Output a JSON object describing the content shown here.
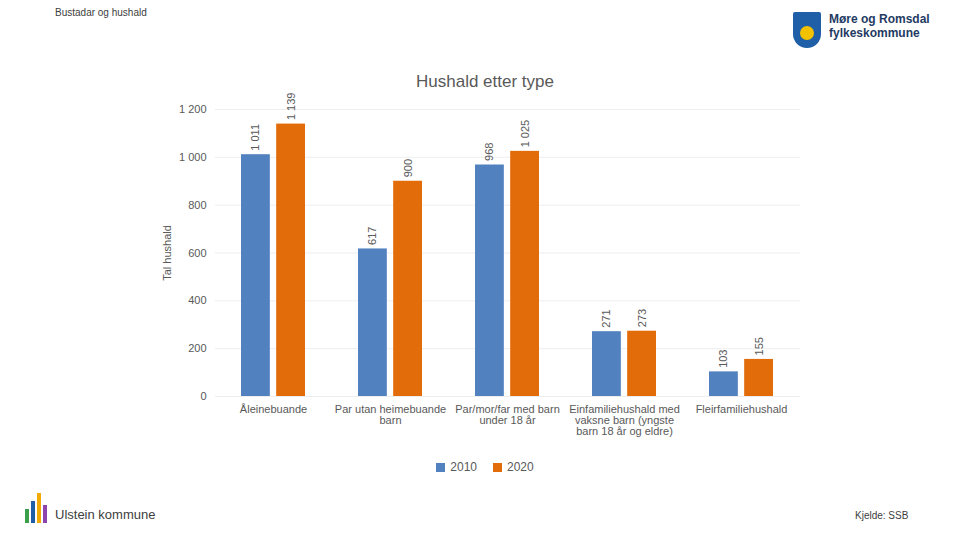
{
  "page": {
    "header": "Bustadar og hushald",
    "organisation": [
      "Møre og Romsdal",
      "fylkeskommune"
    ],
    "footer": "Ulstein kommune",
    "source": "Kjelde: SSB"
  },
  "chart_data": {
    "type": "bar",
    "title": "Hushald etter type",
    "y_label": "Tal hushald",
    "categories": [
      "Åleinebuande",
      "Par utan heimebuande barn",
      "Par/mor/far med barn under 18 år",
      "Einfamiliehushald med vaksne barn (yngste barn 18 år og eldre)",
      "Fleirfamiliehushald"
    ],
    "series": [
      {
        "name": "2010",
        "color": "#5281c0",
        "values": [
          1011,
          617,
          968,
          271,
          103
        ],
        "value_labels": [
          "1 011",
          "617",
          "968",
          "271",
          "103"
        ]
      },
      {
        "name": "2020",
        "color": "#e36c0a",
        "values": [
          1139,
          900,
          1025,
          273,
          155
        ],
        "value_labels": [
          "1 139",
          "900",
          "1 025",
          "273",
          "155"
        ]
      }
    ],
    "ylim": [
      0,
      1200
    ],
    "yticks": [
      0,
      200,
      400,
      600,
      800,
      {
        "value": 1000,
        "label": "1 000"
      },
      {
        "value": 1200,
        "label": "1 200"
      }
    ],
    "grid": true,
    "data_labels": true,
    "legend": "bottom"
  }
}
